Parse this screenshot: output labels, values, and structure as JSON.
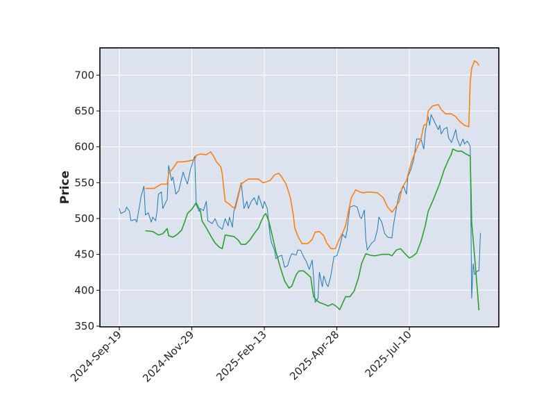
{
  "chart_data": {
    "type": "line",
    "title": "",
    "xlabel": "",
    "ylabel": "Price",
    "ylim": [
      349,
      738
    ],
    "xlim": [
      -13.4,
      261.7
    ],
    "grid": true,
    "background_color": "#dce3ef",
    "grid_color": "#ffffff",
    "x_ticks": [
      {
        "x": 0,
        "label": "2024-Sep-19"
      },
      {
        "x": 50,
        "label": "2024-Nov-29"
      },
      {
        "x": 100,
        "label": "2025-Feb-13"
      },
      {
        "x": 150,
        "label": "2025-Apr-28"
      },
      {
        "x": 200,
        "label": "2025-Jul-10"
      }
    ],
    "y_ticks": [
      350,
      400,
      450,
      500,
      550,
      600,
      650,
      700
    ],
    "series": [
      {
        "color": "#1f77b4",
        "width": 1,
        "points": [
          [
            0,
            514
          ],
          [
            1,
            507
          ],
          [
            4,
            510
          ],
          [
            5,
            516
          ],
          [
            7,
            510
          ],
          [
            8,
            497
          ],
          [
            11,
            499
          ],
          [
            12,
            495
          ],
          [
            14,
            519
          ],
          [
            15,
            531
          ],
          [
            17,
            545
          ],
          [
            18,
            505
          ],
          [
            20,
            508
          ],
          [
            22,
            495
          ],
          [
            23,
            502
          ],
          [
            25,
            497
          ],
          [
            26,
            511
          ],
          [
            27,
            534
          ],
          [
            29,
            537
          ],
          [
            30,
            514
          ],
          [
            33,
            527
          ],
          [
            34,
            574
          ],
          [
            36,
            553
          ],
          [
            37,
            558
          ],
          [
            39,
            534
          ],
          [
            41,
            539
          ],
          [
            44,
            565
          ],
          [
            45,
            558
          ],
          [
            47,
            548
          ],
          [
            49,
            568
          ],
          [
            52,
            587
          ],
          [
            53,
            519
          ],
          [
            55,
            510
          ],
          [
            56,
            514
          ],
          [
            58,
            511
          ],
          [
            60,
            524
          ],
          [
            61,
            497
          ],
          [
            64,
            493
          ],
          [
            66,
            500
          ],
          [
            68,
            490
          ],
          [
            71,
            485
          ],
          [
            73,
            500
          ],
          [
            75,
            490
          ],
          [
            76,
            502
          ],
          [
            78,
            488
          ],
          [
            79,
            510
          ],
          [
            82,
            534
          ],
          [
            84,
            550
          ],
          [
            86,
            514
          ],
          [
            88,
            524
          ],
          [
            89,
            514
          ],
          [
            91,
            524
          ],
          [
            93,
            529
          ],
          [
            95,
            519
          ],
          [
            96,
            532
          ],
          [
            99,
            514
          ],
          [
            100,
            524
          ],
          [
            102,
            514
          ],
          [
            104,
            476
          ],
          [
            105,
            466
          ],
          [
            107,
            456
          ],
          [
            108,
            444
          ],
          [
            110,
            447
          ],
          [
            112,
            449
          ],
          [
            114,
            432
          ],
          [
            116,
            434
          ],
          [
            118,
            447
          ],
          [
            119,
            451
          ],
          [
            122,
            449
          ],
          [
            123,
            456
          ],
          [
            125,
            456
          ],
          [
            127,
            447
          ],
          [
            129,
            440
          ],
          [
            131,
            429
          ],
          [
            133,
            442
          ],
          [
            134,
            418
          ],
          [
            135,
            383
          ],
          [
            137,
            389
          ],
          [
            138,
            425
          ],
          [
            140,
            405
          ],
          [
            141,
            420
          ],
          [
            143,
            408
          ],
          [
            144,
            405
          ],
          [
            146,
            422
          ],
          [
            148,
            447
          ],
          [
            150,
            448
          ],
          [
            152,
            461
          ],
          [
            154,
            478
          ],
          [
            156,
            473
          ],
          [
            157,
            483
          ],
          [
            159,
            516
          ],
          [
            162,
            518
          ],
          [
            164,
            516
          ],
          [
            166,
            502
          ],
          [
            167,
            500
          ],
          [
            169,
            512
          ],
          [
            170,
            471
          ],
          [
            171,
            456
          ],
          [
            174,
            466
          ],
          [
            176,
            469
          ],
          [
            178,
            485
          ],
          [
            179,
            502
          ],
          [
            181,
            495
          ],
          [
            183,
            479
          ],
          [
            185,
            474
          ],
          [
            188,
            473
          ],
          [
            189,
            490
          ],
          [
            191,
            514
          ],
          [
            193,
            534
          ],
          [
            196,
            545
          ],
          [
            198,
            534
          ],
          [
            199,
            558
          ],
          [
            201,
            568
          ],
          [
            203,
            582
          ],
          [
            205,
            611
          ],
          [
            208,
            611
          ],
          [
            210,
            597
          ],
          [
            211,
            621
          ],
          [
            213,
            642
          ],
          [
            214,
            630
          ],
          [
            215,
            645
          ],
          [
            218,
            632
          ],
          [
            220,
            624
          ],
          [
            221,
            630
          ],
          [
            222,
            618
          ],
          [
            224,
            625
          ],
          [
            226,
            627
          ],
          [
            227,
            613
          ],
          [
            229,
            606
          ],
          [
            230,
            611
          ],
          [
            232,
            624
          ],
          [
            233,
            611
          ],
          [
            235,
            601
          ],
          [
            237,
            611
          ],
          [
            238,
            604
          ],
          [
            240,
            608
          ],
          [
            242,
            601
          ],
          [
            243,
            389
          ],
          [
            244,
            437
          ],
          [
            245,
            422
          ],
          [
            247,
            427
          ],
          [
            248,
            427
          ],
          [
            249,
            480
          ]
        ]
      },
      {
        "color": "#ff7f0e",
        "width": 1.6,
        "points": [
          [
            18,
            542
          ],
          [
            24,
            542
          ],
          [
            29,
            548
          ],
          [
            33,
            548
          ],
          [
            34,
            563
          ],
          [
            37,
            570
          ],
          [
            40,
            579
          ],
          [
            43,
            579
          ],
          [
            47,
            580
          ],
          [
            52,
            582
          ],
          [
            53,
            588
          ],
          [
            56,
            590
          ],
          [
            60,
            589
          ],
          [
            63,
            593
          ],
          [
            65,
            587
          ],
          [
            67,
            579
          ],
          [
            70,
            572
          ],
          [
            71,
            562
          ],
          [
            73,
            524
          ],
          [
            76,
            520
          ],
          [
            78,
            516
          ],
          [
            80,
            514
          ],
          [
            84,
            548
          ],
          [
            86,
            551
          ],
          [
            89,
            555
          ],
          [
            92,
            555
          ],
          [
            96,
            555
          ],
          [
            99,
            550
          ],
          [
            101,
            551
          ],
          [
            104,
            553
          ],
          [
            107,
            561
          ],
          [
            110,
            563
          ],
          [
            112,
            558
          ],
          [
            115,
            548
          ],
          [
            118,
            529
          ],
          [
            120,
            505
          ],
          [
            121,
            487
          ],
          [
            123,
            476
          ],
          [
            126,
            465
          ],
          [
            130,
            465
          ],
          [
            133,
            471
          ],
          [
            135,
            481
          ],
          [
            138,
            482
          ],
          [
            141,
            476
          ],
          [
            143,
            466
          ],
          [
            146,
            458
          ],
          [
            149,
            458
          ],
          [
            151,
            468
          ],
          [
            154,
            480
          ],
          [
            156,
            490
          ],
          [
            158,
            510
          ],
          [
            160,
            529
          ],
          [
            163,
            540
          ],
          [
            166,
            537
          ],
          [
            168,
            536
          ],
          [
            172,
            537
          ],
          [
            178,
            536
          ],
          [
            182,
            529
          ],
          [
            185,
            516
          ],
          [
            188,
            509
          ],
          [
            190,
            514
          ],
          [
            193,
            524
          ],
          [
            195,
            543
          ],
          [
            198,
            553
          ],
          [
            200,
            568
          ],
          [
            202,
            582
          ],
          [
            205,
            597
          ],
          [
            208,
            611
          ],
          [
            210,
            630
          ],
          [
            212,
            632
          ],
          [
            213,
            650
          ],
          [
            216,
            657
          ],
          [
            220,
            659
          ],
          [
            222,
            652
          ],
          [
            225,
            646
          ],
          [
            229,
            646
          ],
          [
            232,
            642
          ],
          [
            235,
            635
          ],
          [
            238,
            630
          ],
          [
            241,
            628
          ],
          [
            242,
            691
          ],
          [
            243,
            710
          ],
          [
            245,
            720
          ],
          [
            247,
            717
          ],
          [
            248,
            713
          ]
        ]
      },
      {
        "color": "#2ca02c",
        "width": 1.6,
        "points": [
          [
            18,
            483
          ],
          [
            23,
            482
          ],
          [
            27,
            477
          ],
          [
            30,
            479
          ],
          [
            33,
            486
          ],
          [
            34,
            476
          ],
          [
            37,
            474
          ],
          [
            40,
            478
          ],
          [
            43,
            484
          ],
          [
            45,
            495
          ],
          [
            47,
            507
          ],
          [
            50,
            513
          ],
          [
            53,
            522
          ],
          [
            56,
            510
          ],
          [
            57,
            497
          ],
          [
            60,
            487
          ],
          [
            63,
            476
          ],
          [
            66,
            466
          ],
          [
            69,
            460
          ],
          [
            71,
            458
          ],
          [
            73,
            477
          ],
          [
            76,
            476
          ],
          [
            79,
            475
          ],
          [
            82,
            470
          ],
          [
            84,
            464
          ],
          [
            87,
            464
          ],
          [
            90,
            470
          ],
          [
            93,
            479
          ],
          [
            96,
            487
          ],
          [
            98,
            497
          ],
          [
            100,
            505
          ],
          [
            101,
            507
          ],
          [
            103,
            497
          ],
          [
            105,
            480
          ],
          [
            108,
            454
          ],
          [
            111,
            432
          ],
          [
            114,
            413
          ],
          [
            117,
            403
          ],
          [
            119,
            406
          ],
          [
            122,
            422
          ],
          [
            124,
            427
          ],
          [
            127,
            427
          ],
          [
            130,
            422
          ],
          [
            132,
            418
          ],
          [
            134,
            391
          ],
          [
            136,
            386
          ],
          [
            138,
            383
          ],
          [
            142,
            380
          ],
          [
            144,
            378
          ],
          [
            147,
            381
          ],
          [
            150,
            377
          ],
          [
            152,
            373
          ],
          [
            154,
            382
          ],
          [
            156,
            391
          ],
          [
            159,
            391
          ],
          [
            162,
            399
          ],
          [
            165,
            418
          ],
          [
            167,
            437
          ],
          [
            170,
            451
          ],
          [
            173,
            449
          ],
          [
            176,
            448
          ],
          [
            181,
            450
          ],
          [
            186,
            450
          ],
          [
            188,
            448
          ],
          [
            191,
            456
          ],
          [
            194,
            458
          ],
          [
            197,
            451
          ],
          [
            200,
            445
          ],
          [
            202,
            447
          ],
          [
            205,
            452
          ],
          [
            208,
            468
          ],
          [
            211,
            490
          ],
          [
            213,
            510
          ],
          [
            216,
            524
          ],
          [
            219,
            539
          ],
          [
            221,
            549
          ],
          [
            224,
            568
          ],
          [
            227,
            582
          ],
          [
            229,
            590
          ],
          [
            230,
            597
          ],
          [
            233,
            594
          ],
          [
            236,
            594
          ],
          [
            239,
            590
          ],
          [
            242,
            587
          ],
          [
            243,
            495
          ],
          [
            245,
            447
          ],
          [
            247,
            398
          ],
          [
            248,
            372
          ]
        ]
      }
    ]
  }
}
